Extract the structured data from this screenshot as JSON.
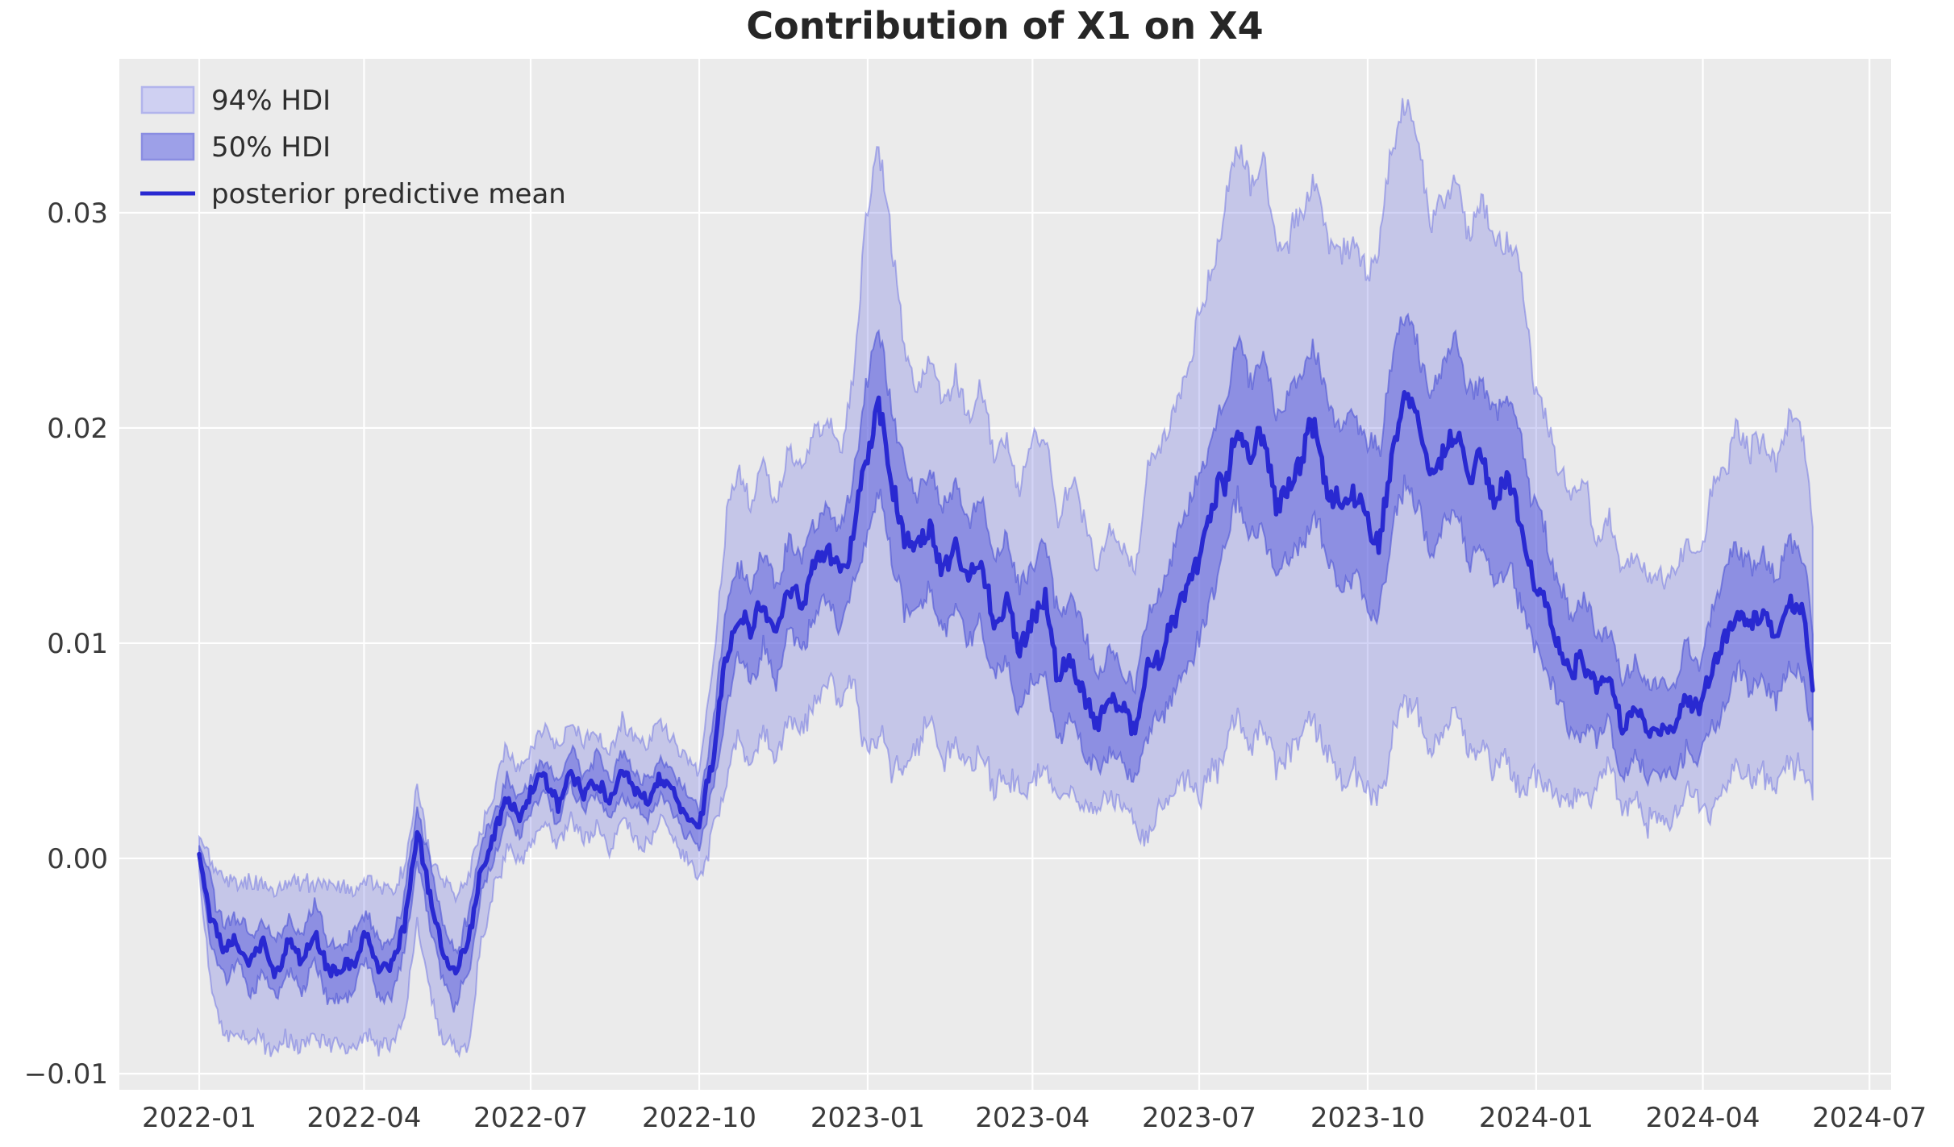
{
  "figure": {
    "background": "#ffffff",
    "panel_background": "#ebebeb",
    "grid_color": "#ffffff"
  },
  "chart_data": {
    "type": "line",
    "title": "Contribution of X1 on X4",
    "legend": [
      {
        "label": "94% HDI",
        "kind": "band",
        "fill": "#cfd0f2",
        "edge": "#b2b4ec"
      },
      {
        "label": "50% HDI",
        "kind": "band",
        "fill": "#9da0e8",
        "edge": "#8a8de2"
      },
      {
        "label": "posterior predictive mean",
        "kind": "line",
        "color": "#2929d1"
      }
    ],
    "colors": {
      "band94_fill": "rgba(110,113,225,0.30)",
      "band94_edge": "rgba(110,113,225,0.50)",
      "band50_fill": "rgba(100,104,222,0.58)",
      "band50_edge": "rgba(85,90,215,0.65)",
      "mean_line": "#2929d1"
    },
    "x_axis": {
      "start_date": "2022-01-01",
      "tick_days": [
        0,
        90,
        181,
        273,
        365,
        455,
        546,
        638,
        730,
        821,
        912
      ],
      "tick_labels": [
        "2022-01",
        "2022-04",
        "2022-07",
        "2022-10",
        "2023-01",
        "2023-04",
        "2023-07",
        "2023-10",
        "2024-01",
        "2024-04",
        "2024-07"
      ],
      "domain_days": [
        -43.6,
        923.8
      ],
      "grid": true
    },
    "y_axis": {
      "ticks": [
        -0.01,
        0.0,
        0.01,
        0.02,
        0.03
      ],
      "tick_labels": [
        "−0.01",
        "0.00",
        "0.01",
        "0.02",
        "0.03"
      ],
      "domain": [
        -0.01075,
        0.03715
      ],
      "grid": true
    },
    "series_keypoints": {
      "columns": [
        "day",
        "mean",
        "hdi94_lo",
        "hdi94_hi",
        "hdi50_lo",
        "hdi50_hi"
      ],
      "rows": [
        [
          0,
          0.0002,
          -0.0006,
          0.001,
          -0.0002,
          0.0006
        ],
        [
          7,
          -0.0028,
          -0.0066,
          -0.0004,
          -0.0041,
          -0.0015
        ],
        [
          14,
          -0.0042,
          -0.0082,
          -0.0011,
          -0.0055,
          -0.0029
        ],
        [
          21,
          -0.0038,
          -0.008,
          -0.001,
          -0.0051,
          -0.0025
        ],
        [
          28,
          -0.005,
          -0.0086,
          -0.0013,
          -0.0063,
          -0.0037
        ],
        [
          35,
          -0.004,
          -0.0084,
          -0.0011,
          -0.0053,
          -0.0027
        ],
        [
          42,
          -0.0052,
          -0.0087,
          -0.0014,
          -0.0065,
          -0.0039
        ],
        [
          49,
          -0.0038,
          -0.0083,
          -0.001,
          -0.0051,
          -0.0025
        ],
        [
          56,
          -0.0048,
          -0.0086,
          -0.0012,
          -0.0061,
          -0.0035
        ],
        [
          63,
          -0.0035,
          -0.0082,
          -0.001,
          -0.0048,
          -0.0022
        ],
        [
          70,
          -0.0052,
          -0.0088,
          -0.0013,
          -0.0065,
          -0.0039
        ],
        [
          77,
          -0.0052,
          -0.0088,
          -0.0014,
          -0.0065,
          -0.0039
        ],
        [
          84,
          -0.0048,
          -0.0086,
          -0.0012,
          -0.0061,
          -0.0035
        ],
        [
          91,
          -0.0035,
          -0.008,
          -0.001,
          -0.0048,
          -0.0022
        ],
        [
          98,
          -0.0052,
          -0.0087,
          -0.0013,
          -0.0065,
          -0.0039
        ],
        [
          105,
          -0.005,
          -0.0086,
          -0.0012,
          -0.0063,
          -0.0037
        ],
        [
          112,
          -0.003,
          -0.0075,
          -0.0005,
          -0.0043,
          -0.0017
        ],
        [
          119,
          0.0012,
          -0.0028,
          0.003,
          -0.0002,
          0.0024
        ],
        [
          126,
          -0.0018,
          -0.0062,
          0.0002,
          -0.0031,
          -0.0005
        ],
        [
          133,
          -0.0045,
          -0.0085,
          -0.0012,
          -0.0058,
          -0.0032
        ],
        [
          140,
          -0.0055,
          -0.0091,
          -0.0016,
          -0.0068,
          -0.0042
        ],
        [
          147,
          -0.004,
          -0.0086,
          -0.001,
          -0.0053,
          -0.0027
        ],
        [
          154,
          -0.0005,
          -0.004,
          0.0012,
          -0.0016,
          0.0006
        ],
        [
          161,
          0.001,
          -0.0015,
          0.0032,
          0.0001,
          0.0019
        ],
        [
          168,
          0.0028,
          0.0006,
          0.0052,
          0.0019,
          0.0037
        ],
        [
          175,
          0.0018,
          -0.0004,
          0.0042,
          0.0009,
          0.0027
        ],
        [
          182,
          0.0032,
          0.001,
          0.0056,
          0.0023,
          0.0041
        ],
        [
          189,
          0.0038,
          0.0016,
          0.0062,
          0.0029,
          0.0047
        ],
        [
          196,
          0.0025,
          0.0003,
          0.0049,
          0.0016,
          0.0034
        ],
        [
          203,
          0.0042,
          0.002,
          0.0066,
          0.0033,
          0.0051
        ],
        [
          210,
          0.003,
          0.0008,
          0.0054,
          0.0021,
          0.0039
        ],
        [
          217,
          0.0038,
          0.0016,
          0.0062,
          0.0029,
          0.0047
        ],
        [
          224,
          0.0025,
          0.0003,
          0.0049,
          0.0016,
          0.0034
        ],
        [
          231,
          0.004,
          0.0018,
          0.0064,
          0.0031,
          0.0049
        ],
        [
          238,
          0.0032,
          0.001,
          0.0056,
          0.0023,
          0.0041
        ],
        [
          245,
          0.0028,
          0.0006,
          0.0052,
          0.0019,
          0.0037
        ],
        [
          252,
          0.0038,
          0.0016,
          0.0062,
          0.0029,
          0.0047
        ],
        [
          259,
          0.003,
          0.0008,
          0.0054,
          0.0021,
          0.0039
        ],
        [
          266,
          0.002,
          -0.0002,
          0.0044,
          0.0011,
          0.0029
        ],
        [
          273,
          0.0015,
          -0.0007,
          0.0039,
          0.0006,
          0.0024
        ],
        [
          280,
          0.0045,
          0.001,
          0.0085,
          0.003,
          0.006
        ],
        [
          287,
          0.009,
          0.003,
          0.0152,
          0.0068,
          0.0112
        ],
        [
          294,
          0.0115,
          0.0055,
          0.0177,
          0.0093,
          0.0137
        ],
        [
          301,
          0.0105,
          0.0045,
          0.0167,
          0.0083,
          0.0127
        ],
        [
          308,
          0.012,
          0.006,
          0.0182,
          0.0098,
          0.0142
        ],
        [
          315,
          0.0105,
          0.0045,
          0.0167,
          0.0083,
          0.0127
        ],
        [
          322,
          0.0128,
          0.0068,
          0.019,
          0.0106,
          0.015
        ],
        [
          329,
          0.0118,
          0.0058,
          0.018,
          0.0096,
          0.014
        ],
        [
          336,
          0.0135,
          0.0075,
          0.0197,
          0.0113,
          0.0157
        ],
        [
          343,
          0.0142,
          0.0082,
          0.0204,
          0.012,
          0.0164
        ],
        [
          350,
          0.013,
          0.007,
          0.0192,
          0.0108,
          0.0152
        ],
        [
          357,
          0.015,
          0.0085,
          0.022,
          0.0126,
          0.0174
        ],
        [
          364,
          0.0185,
          0.0048,
          0.03,
          0.015,
          0.022
        ],
        [
          371,
          0.0208,
          0.0058,
          0.0328,
          0.0172,
          0.0244
        ],
        [
          378,
          0.0175,
          0.0042,
          0.0288,
          0.014,
          0.021
        ],
        [
          385,
          0.015,
          0.004,
          0.024,
          0.0118,
          0.0182
        ],
        [
          392,
          0.0142,
          0.0052,
          0.022,
          0.0114,
          0.017
        ],
        [
          399,
          0.0155,
          0.0065,
          0.0233,
          0.0127,
          0.0183
        ],
        [
          406,
          0.0132,
          0.0044,
          0.021,
          0.0104,
          0.016
        ],
        [
          413,
          0.0145,
          0.0055,
          0.0223,
          0.0117,
          0.0173
        ],
        [
          420,
          0.013,
          0.0042,
          0.0208,
          0.0102,
          0.0158
        ],
        [
          427,
          0.0138,
          0.0048,
          0.0216,
          0.011,
          0.0166
        ],
        [
          434,
          0.011,
          0.0035,
          0.0188,
          0.0082,
          0.0138
        ],
        [
          441,
          0.012,
          0.0038,
          0.0198,
          0.0092,
          0.0148
        ],
        [
          448,
          0.0095,
          0.003,
          0.0173,
          0.0067,
          0.0123
        ],
        [
          455,
          0.0112,
          0.0035,
          0.019,
          0.0084,
          0.014
        ],
        [
          462,
          0.012,
          0.004,
          0.0198,
          0.0092,
          0.0148
        ],
        [
          469,
          0.0082,
          0.0025,
          0.016,
          0.0054,
          0.011
        ],
        [
          476,
          0.0095,
          0.003,
          0.0173,
          0.0067,
          0.0123
        ],
        [
          483,
          0.0078,
          0.0025,
          0.0156,
          0.005,
          0.0106
        ],
        [
          490,
          0.0062,
          0.002,
          0.0137,
          0.004,
          0.0084
        ],
        [
          497,
          0.0075,
          0.0033,
          0.015,
          0.0053,
          0.0097
        ],
        [
          504,
          0.0068,
          0.0026,
          0.0143,
          0.0046,
          0.009
        ],
        [
          511,
          0.0058,
          0.0016,
          0.0133,
          0.0036,
          0.008
        ],
        [
          518,
          0.0085,
          0.0012,
          0.018,
          0.0055,
          0.0115
        ],
        [
          525,
          0.0095,
          0.0022,
          0.019,
          0.0065,
          0.0125
        ],
        [
          532,
          0.011,
          0.003,
          0.0205,
          0.0078,
          0.0142
        ],
        [
          539,
          0.0125,
          0.004,
          0.022,
          0.009,
          0.016
        ],
        [
          546,
          0.014,
          0.003,
          0.0255,
          0.0102,
          0.0178
        ],
        [
          553,
          0.016,
          0.004,
          0.0275,
          0.0122,
          0.0198
        ],
        [
          560,
          0.0178,
          0.005,
          0.0303,
          0.014,
          0.0216
        ],
        [
          567,
          0.0205,
          0.007,
          0.033,
          0.0167,
          0.0243
        ],
        [
          574,
          0.0185,
          0.0055,
          0.031,
          0.0147,
          0.0223
        ],
        [
          581,
          0.0198,
          0.0065,
          0.0323,
          0.016,
          0.0236
        ],
        [
          588,
          0.0165,
          0.004,
          0.028,
          0.0127,
          0.0203
        ],
        [
          595,
          0.0175,
          0.0048,
          0.029,
          0.0137,
          0.0213
        ],
        [
          602,
          0.0188,
          0.0058,
          0.0303,
          0.015,
          0.0226
        ],
        [
          609,
          0.0202,
          0.0068,
          0.0317,
          0.0164,
          0.024
        ],
        [
          616,
          0.0175,
          0.0045,
          0.029,
          0.0137,
          0.0213
        ],
        [
          623,
          0.0165,
          0.0038,
          0.028,
          0.0127,
          0.0203
        ],
        [
          630,
          0.017,
          0.0042,
          0.0285,
          0.0132,
          0.0208
        ],
        [
          637,
          0.0158,
          0.0032,
          0.0273,
          0.012,
          0.0196
        ],
        [
          644,
          0.015,
          0.0028,
          0.0285,
          0.0112,
          0.0188
        ],
        [
          651,
          0.019,
          0.0055,
          0.0325,
          0.0152,
          0.0228
        ],
        [
          658,
          0.0212,
          0.0075,
          0.0347,
          0.0174,
          0.025
        ],
        [
          665,
          0.0205,
          0.007,
          0.0338,
          0.0167,
          0.0243
        ],
        [
          672,
          0.0178,
          0.0048,
          0.0295,
          0.014,
          0.0216
        ],
        [
          679,
          0.0192,
          0.006,
          0.0307,
          0.0154,
          0.023
        ],
        [
          686,
          0.02,
          0.0068,
          0.0315,
          0.0162,
          0.0238
        ],
        [
          693,
          0.0178,
          0.0048,
          0.0293,
          0.014,
          0.0216
        ],
        [
          700,
          0.0185,
          0.0055,
          0.03,
          0.0147,
          0.0223
        ],
        [
          707,
          0.0168,
          0.004,
          0.0283,
          0.013,
          0.0206
        ],
        [
          714,
          0.0175,
          0.0047,
          0.029,
          0.0137,
          0.0213
        ],
        [
          721,
          0.0158,
          0.0033,
          0.0273,
          0.012,
          0.0196
        ],
        [
          728,
          0.0132,
          0.004,
          0.0225,
          0.01,
          0.0164
        ],
        [
          735,
          0.012,
          0.0035,
          0.0208,
          0.009,
          0.015
        ],
        [
          742,
          0.0098,
          0.0028,
          0.0185,
          0.007,
          0.0126
        ],
        [
          749,
          0.0085,
          0.0022,
          0.017,
          0.0057,
          0.0113
        ],
        [
          756,
          0.0092,
          0.0027,
          0.0177,
          0.0064,
          0.012
        ],
        [
          763,
          0.0078,
          0.0033,
          0.015,
          0.0056,
          0.01
        ],
        [
          770,
          0.0085,
          0.004,
          0.0157,
          0.0063,
          0.0107
        ],
        [
          777,
          0.0062,
          0.002,
          0.0134,
          0.004,
          0.0084
        ],
        [
          784,
          0.007,
          0.0027,
          0.0142,
          0.0048,
          0.0092
        ],
        [
          791,
          0.0058,
          0.0016,
          0.013,
          0.0036,
          0.008
        ],
        [
          798,
          0.0062,
          0.0019,
          0.0134,
          0.004,
          0.0084
        ],
        [
          805,
          0.0058,
          0.0015,
          0.013,
          0.0036,
          0.008
        ],
        [
          812,
          0.0075,
          0.0032,
          0.0147,
          0.0053,
          0.0097
        ],
        [
          819,
          0.0068,
          0.0025,
          0.014,
          0.0046,
          0.009
        ],
        [
          826,
          0.0088,
          0.0022,
          0.017,
          0.006,
          0.0116
        ],
        [
          833,
          0.0102,
          0.0032,
          0.0184,
          0.0074,
          0.013
        ],
        [
          840,
          0.0118,
          0.0046,
          0.02,
          0.009,
          0.0146
        ],
        [
          847,
          0.0105,
          0.0034,
          0.0187,
          0.0077,
          0.0133
        ],
        [
          854,
          0.0112,
          0.004,
          0.0194,
          0.0084,
          0.014
        ],
        [
          861,
          0.0102,
          0.003,
          0.0184,
          0.0074,
          0.013
        ],
        [
          868,
          0.0118,
          0.0046,
          0.02,
          0.009,
          0.0146
        ],
        [
          875,
          0.0115,
          0.0043,
          0.0197,
          0.0087,
          0.0143
        ],
        [
          881,
          0.0082,
          0.003,
          0.0155,
          0.0057,
          0.0107
        ]
      ]
    },
    "noise": {
      "seed": 3,
      "mean_amp": 0.0004,
      "edge94_amp": 0.00055,
      "edge50_amp": 0.00045,
      "rel": 0.085
    }
  }
}
